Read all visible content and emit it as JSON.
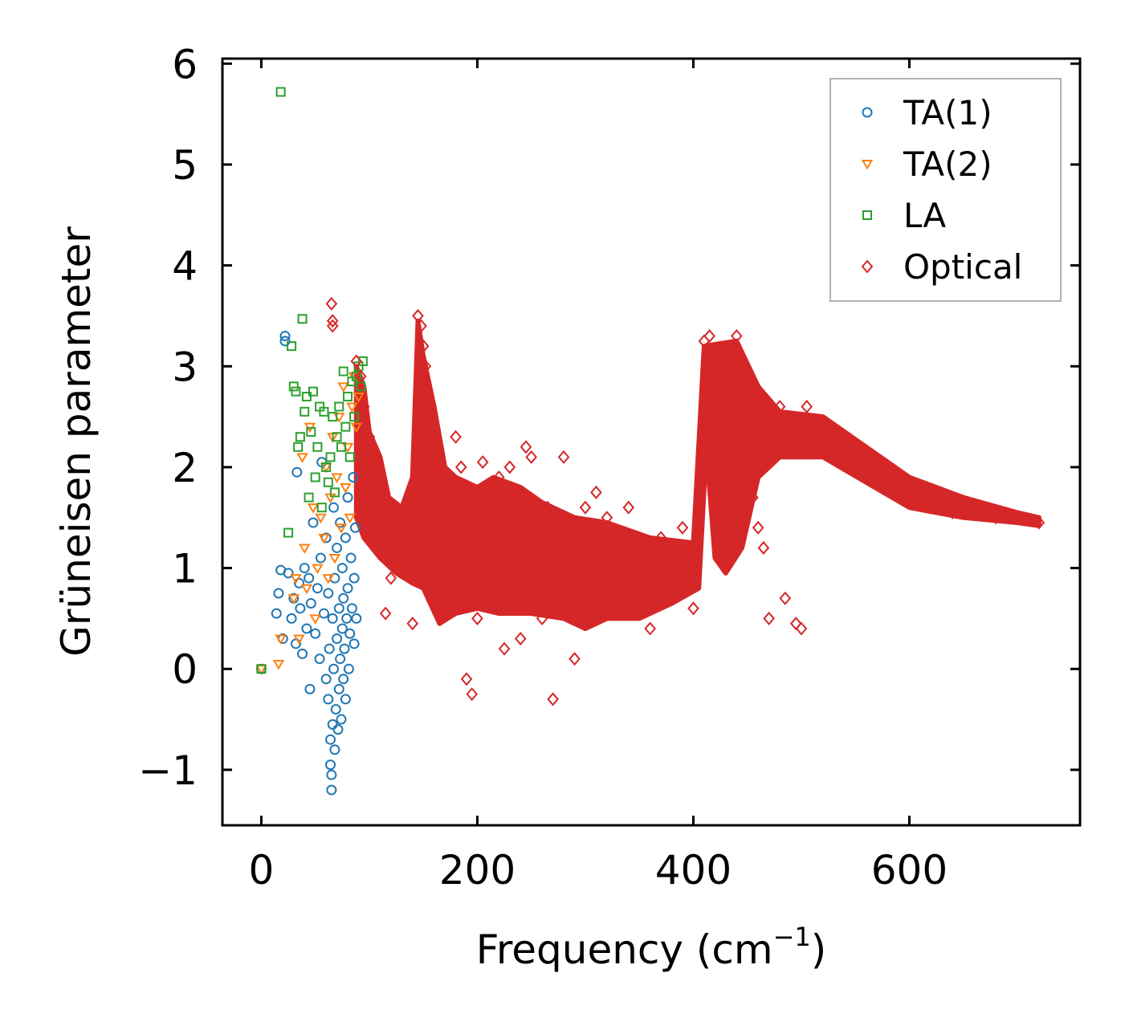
{
  "chart_data": {
    "type": "scatter",
    "title": "",
    "xlabel": "Frequency (cm",
    "xlabel_sup": "−1",
    "xlabel_close": ")",
    "ylabel": "Grüneisen parameter",
    "xlim": [
      -36,
      758
    ],
    "ylim": [
      -1.55,
      6.05
    ],
    "xticks": [
      0,
      200,
      400,
      600
    ],
    "xtick_labels": [
      "0",
      "200",
      "400",
      "600"
    ],
    "yticks": [
      -1,
      0,
      1,
      2,
      3,
      4,
      5,
      6
    ],
    "ytick_labels": [
      "−1",
      "0",
      "1",
      "2",
      "3",
      "4",
      "5",
      "6"
    ],
    "legend_position": "top-right",
    "series": [
      {
        "name": "TA(1)",
        "marker": "circle",
        "color": "#1f77b4",
        "points": [
          [
            0,
            0
          ],
          [
            14,
            0.55
          ],
          [
            16,
            0.75
          ],
          [
            18,
            0.98
          ],
          [
            20,
            0.3
          ],
          [
            22,
            3.3
          ],
          [
            22,
            3.25
          ],
          [
            25,
            0.95
          ],
          [
            28,
            0.5
          ],
          [
            30,
            0.7
          ],
          [
            32,
            0.25
          ],
          [
            33,
            1.95
          ],
          [
            35,
            0.85
          ],
          [
            36,
            0.6
          ],
          [
            38,
            0.15
          ],
          [
            40,
            1.0
          ],
          [
            42,
            0.4
          ],
          [
            44,
            0.9
          ],
          [
            45,
            -0.2
          ],
          [
            46,
            0.65
          ],
          [
            48,
            1.45
          ],
          [
            50,
            0.35
          ],
          [
            52,
            0.8
          ],
          [
            54,
            0.1
          ],
          [
            55,
            1.1
          ],
          [
            56,
            2.05
          ],
          [
            58,
            0.55
          ],
          [
            60,
            -0.1
          ],
          [
            60,
            1.3
          ],
          [
            62,
            0.75
          ],
          [
            62,
            -0.3
          ],
          [
            63,
            0.2
          ],
          [
            64,
            -0.7
          ],
          [
            64,
            -0.95
          ],
          [
            65,
            -1.05
          ],
          [
            65,
            -1.2
          ],
          [
            66,
            0.5
          ],
          [
            66,
            -0.55
          ],
          [
            67,
            1.6
          ],
          [
            67,
            0.0
          ],
          [
            68,
            -0.8
          ],
          [
            68,
            0.9
          ],
          [
            69,
            -0.4
          ],
          [
            70,
            1.2
          ],
          [
            70,
            0.3
          ],
          [
            71,
            -0.6
          ],
          [
            72,
            0.6
          ],
          [
            72,
            -0.2
          ],
          [
            73,
            1.45
          ],
          [
            73,
            0.1
          ],
          [
            74,
            -0.5
          ],
          [
            75,
            0.4
          ],
          [
            75,
            1.0
          ],
          [
            76,
            -0.1
          ],
          [
            76,
            0.7
          ],
          [
            77,
            0.2
          ],
          [
            78,
            1.3
          ],
          [
            78,
            -0.3
          ],
          [
            79,
            0.5
          ],
          [
            80,
            0.8
          ],
          [
            80,
            1.7
          ],
          [
            81,
            0.0
          ],
          [
            82,
            0.35
          ],
          [
            83,
            1.1
          ],
          [
            84,
            0.6
          ],
          [
            85,
            1.9
          ],
          [
            86,
            0.9
          ],
          [
            86,
            0.25
          ],
          [
            87,
            1.4
          ],
          [
            88,
            0.5
          ]
        ]
      },
      {
        "name": "TA(2)",
        "marker": "triangle-down",
        "color": "#ff7f0e",
        "points": [
          [
            0,
            0
          ],
          [
            16,
            0.05
          ],
          [
            18,
            0.3
          ],
          [
            30,
            0.7
          ],
          [
            32,
            0.9
          ],
          [
            35,
            0.3
          ],
          [
            38,
            2.1
          ],
          [
            40,
            1.2
          ],
          [
            42,
            0.8
          ],
          [
            45,
            2.4
          ],
          [
            48,
            1.6
          ],
          [
            50,
            0.5
          ],
          [
            52,
            1.0
          ],
          [
            55,
            1.5
          ],
          [
            58,
            1.3
          ],
          [
            60,
            2.0
          ],
          [
            62,
            0.9
          ],
          [
            64,
            1.7
          ],
          [
            66,
            2.3
          ],
          [
            68,
            1.1
          ],
          [
            70,
            1.9
          ],
          [
            72,
            2.5
          ],
          [
            74,
            1.4
          ],
          [
            76,
            2.8
          ],
          [
            78,
            1.8
          ],
          [
            80,
            2.2
          ],
          [
            82,
            1.5
          ],
          [
            84,
            2.6
          ],
          [
            86,
            2.9
          ],
          [
            88,
            2.4
          ],
          [
            90,
            2.7
          ]
        ]
      },
      {
        "name": "LA",
        "marker": "square",
        "color": "#2ca02c",
        "points": [
          [
            0,
            0
          ],
          [
            18,
            5.72
          ],
          [
            25,
            1.35
          ],
          [
            28,
            3.2
          ],
          [
            30,
            2.8
          ],
          [
            32,
            2.75
          ],
          [
            34,
            2.2
          ],
          [
            36,
            2.3
          ],
          [
            38,
            3.47
          ],
          [
            40,
            2.55
          ],
          [
            42,
            2.7
          ],
          [
            44,
            1.7
          ],
          [
            46,
            2.35
          ],
          [
            48,
            2.75
          ],
          [
            50,
            1.9
          ],
          [
            52,
            2.2
          ],
          [
            54,
            2.6
          ],
          [
            56,
            1.6
          ],
          [
            58,
            2.55
          ],
          [
            60,
            2.0
          ],
          [
            62,
            1.85
          ],
          [
            64,
            2.1
          ],
          [
            66,
            2.5
          ],
          [
            68,
            1.75
          ],
          [
            70,
            2.3
          ],
          [
            72,
            2.6
          ],
          [
            74,
            2.2
          ],
          [
            76,
            2.95
          ],
          [
            78,
            2.4
          ],
          [
            80,
            2.7
          ],
          [
            82,
            2.1
          ],
          [
            84,
            2.85
          ],
          [
            86,
            2.5
          ],
          [
            88,
            2.9
          ],
          [
            90,
            3.0
          ],
          [
            92,
            2.8
          ],
          [
            94,
            3.05
          ]
        ]
      },
      {
        "name": "Optical",
        "marker": "diamond",
        "color": "#d62728",
        "points": [
          [
            65,
            3.62
          ],
          [
            66,
            3.45
          ],
          [
            66,
            3.4
          ],
          [
            88,
            3.05
          ],
          [
            92,
            2.9
          ],
          [
            95,
            2.6
          ],
          [
            100,
            2.3
          ],
          [
            105,
            2.0
          ],
          [
            110,
            1.7
          ],
          [
            112,
            1.4
          ],
          [
            115,
            0.55
          ],
          [
            118,
            1.2
          ],
          [
            120,
            0.9
          ],
          [
            130,
            1.3
          ],
          [
            140,
            0.45
          ],
          [
            145,
            3.5
          ],
          [
            148,
            3.4
          ],
          [
            150,
            3.2
          ],
          [
            152,
            3.0
          ],
          [
            155,
            2.7
          ],
          [
            158,
            2.4
          ],
          [
            160,
            2.1
          ],
          [
            165,
            1.7
          ],
          [
            170,
            1.4
          ],
          [
            175,
            0.6
          ],
          [
            180,
            2.3
          ],
          [
            185,
            2.0
          ],
          [
            190,
            -0.1
          ],
          [
            195,
            -0.25
          ],
          [
            200,
            0.5
          ],
          [
            205,
            2.05
          ],
          [
            210,
            1.7
          ],
          [
            215,
            1.2
          ],
          [
            220,
            1.9
          ],
          [
            225,
            0.2
          ],
          [
            230,
            2.0
          ],
          [
            235,
            1.5
          ],
          [
            240,
            0.3
          ],
          [
            245,
            2.2
          ],
          [
            250,
            2.1
          ],
          [
            255,
            1.0
          ],
          [
            260,
            0.5
          ],
          [
            265,
            1.6
          ],
          [
            270,
            -0.3
          ],
          [
            275,
            0.8
          ],
          [
            280,
            2.1
          ],
          [
            285,
            1.2
          ],
          [
            290,
            0.1
          ],
          [
            300,
            1.6
          ],
          [
            305,
            0.8
          ],
          [
            310,
            1.75
          ],
          [
            320,
            1.5
          ],
          [
            330,
            0.7
          ],
          [
            340,
            1.6
          ],
          [
            350,
            1.1
          ],
          [
            360,
            0.4
          ],
          [
            370,
            1.3
          ],
          [
            380,
            0.9
          ],
          [
            390,
            1.4
          ],
          [
            400,
            0.6
          ],
          [
            410,
            3.25
          ],
          [
            415,
            3.3
          ],
          [
            420,
            2.8
          ],
          [
            425,
            2.4
          ],
          [
            430,
            3.1
          ],
          [
            440,
            3.3
          ],
          [
            450,
            2.9
          ],
          [
            455,
            1.7
          ],
          [
            460,
            1.4
          ],
          [
            465,
            1.2
          ],
          [
            470,
            0.5
          ],
          [
            480,
            2.6
          ],
          [
            485,
            0.7
          ],
          [
            490,
            2.3
          ],
          [
            495,
            0.45
          ],
          [
            500,
            0.4
          ],
          [
            505,
            2.6
          ],
          [
            520,
            2.4
          ],
          [
            540,
            2.3
          ],
          [
            560,
            2.05
          ],
          [
            580,
            1.9
          ],
          [
            600,
            1.8
          ],
          [
            620,
            1.6
          ],
          [
            640,
            1.55
          ],
          [
            660,
            1.55
          ],
          [
            680,
            1.5
          ],
          [
            700,
            1.5
          ],
          [
            720,
            1.45
          ]
        ]
      }
    ]
  }
}
